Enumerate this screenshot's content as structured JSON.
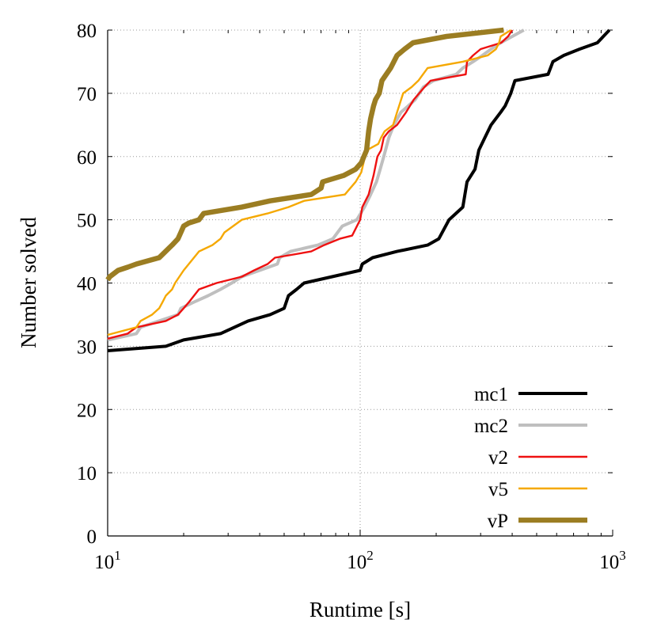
{
  "chart_data": {
    "type": "line",
    "title": "",
    "xlabel": "Runtime [s]",
    "ylabel": "Number solved",
    "x_scale": "log",
    "xlim": [
      10,
      1000
    ],
    "ylim": [
      0,
      80
    ],
    "x_ticks": [
      {
        "value": 10,
        "base": "10",
        "exp": "1"
      },
      {
        "value": 100,
        "base": "10",
        "exp": "2"
      },
      {
        "value": 1000,
        "base": "10",
        "exp": "3"
      }
    ],
    "y_ticks": [
      "0",
      "10",
      "20",
      "30",
      "40",
      "50",
      "60",
      "70",
      "80"
    ],
    "grid": true,
    "legend_position": "bottom-right",
    "series": [
      {
        "name": "mc1",
        "color": "#000000",
        "points": [
          [
            10,
            29.3
          ],
          [
            17,
            30
          ],
          [
            20,
            31
          ],
          [
            28,
            32
          ],
          [
            36,
            34
          ],
          [
            44,
            35
          ],
          [
            50,
            36
          ],
          [
            52,
            38
          ],
          [
            56,
            39
          ],
          [
            60,
            40
          ],
          [
            100,
            42
          ],
          [
            102,
            43
          ],
          [
            112,
            44
          ],
          [
            140,
            45
          ],
          [
            185,
            46
          ],
          [
            205,
            47
          ],
          [
            225,
            50
          ],
          [
            255,
            52
          ],
          [
            265,
            56
          ],
          [
            285,
            58
          ],
          [
            295,
            61
          ],
          [
            312,
            63
          ],
          [
            330,
            65
          ],
          [
            360,
            67
          ],
          [
            375,
            68
          ],
          [
            395,
            70
          ],
          [
            410,
            72
          ],
          [
            555,
            73
          ],
          [
            580,
            75
          ],
          [
            640,
            76
          ],
          [
            740,
            77
          ],
          [
            870,
            78
          ],
          [
            970,
            80
          ]
        ]
      },
      {
        "name": "mc2",
        "color": "#bfbfbf",
        "points": [
          [
            10,
            31
          ],
          [
            13,
            32
          ],
          [
            13.5,
            33
          ],
          [
            16,
            34
          ],
          [
            19,
            35
          ],
          [
            19.5,
            36
          ],
          [
            22,
            37
          ],
          [
            25,
            38
          ],
          [
            28,
            39
          ],
          [
            31,
            40
          ],
          [
            34,
            41
          ],
          [
            40,
            42
          ],
          [
            47,
            43
          ],
          [
            48,
            44
          ],
          [
            53,
            45
          ],
          [
            68,
            46
          ],
          [
            78,
            47
          ],
          [
            85,
            49
          ],
          [
            97,
            50
          ],
          [
            104,
            52
          ],
          [
            110,
            54
          ],
          [
            116,
            56
          ],
          [
            120,
            58
          ],
          [
            124,
            60
          ],
          [
            130,
            63
          ],
          [
            136,
            65
          ],
          [
            145,
            67
          ],
          [
            155,
            68
          ],
          [
            165,
            69
          ],
          [
            178,
            71
          ],
          [
            195,
            72
          ],
          [
            240,
            73
          ],
          [
            255,
            74
          ],
          [
            280,
            75
          ],
          [
            305,
            76
          ],
          [
            330,
            77
          ],
          [
            360,
            78
          ],
          [
            445,
            80
          ]
        ]
      },
      {
        "name": "v2",
        "color": "#ee1111",
        "points": [
          [
            10,
            31.2
          ],
          [
            12,
            32
          ],
          [
            13,
            33
          ],
          [
            17,
            34
          ],
          [
            19,
            35
          ],
          [
            20,
            36
          ],
          [
            21,
            37
          ],
          [
            23,
            39
          ],
          [
            27,
            40
          ],
          [
            34,
            41
          ],
          [
            38,
            42
          ],
          [
            43,
            43
          ],
          [
            46,
            44
          ],
          [
            64,
            45
          ],
          [
            72,
            46
          ],
          [
            83,
            47
          ],
          [
            93,
            47.5
          ],
          [
            100,
            50
          ],
          [
            102,
            52
          ],
          [
            108,
            54
          ],
          [
            113,
            57
          ],
          [
            117,
            60
          ],
          [
            121,
            61
          ],
          [
            124,
            63
          ],
          [
            130,
            64
          ],
          [
            140,
            65
          ],
          [
            152,
            67
          ],
          [
            163,
            69
          ],
          [
            180,
            71
          ],
          [
            190,
            72
          ],
          [
            262,
            73
          ],
          [
            265,
            75
          ],
          [
            280,
            76
          ],
          [
            300,
            77
          ],
          [
            362,
            78
          ],
          [
            385,
            79
          ],
          [
            400,
            80
          ]
        ]
      },
      {
        "name": "v5",
        "color": "#f5a800",
        "points": [
          [
            10,
            31.8
          ],
          [
            13,
            33
          ],
          [
            13.5,
            34
          ],
          [
            15,
            35
          ],
          [
            16,
            36
          ],
          [
            16.5,
            37
          ],
          [
            17,
            38
          ],
          [
            18,
            39
          ],
          [
            18.5,
            40
          ],
          [
            20,
            42
          ],
          [
            23,
            45
          ],
          [
            26,
            46
          ],
          [
            28,
            47
          ],
          [
            29,
            48
          ],
          [
            34,
            50
          ],
          [
            43,
            51
          ],
          [
            52,
            52
          ],
          [
            60,
            53
          ],
          [
            87,
            54
          ],
          [
            96,
            56
          ],
          [
            101,
            57.5
          ],
          [
            106,
            61
          ],
          [
            118,
            62
          ],
          [
            121,
            63
          ],
          [
            125,
            64
          ],
          [
            135,
            65
          ],
          [
            140,
            67
          ],
          [
            148,
            70
          ],
          [
            160,
            71
          ],
          [
            170,
            72
          ],
          [
            185,
            74
          ],
          [
            255,
            75
          ],
          [
            320,
            76
          ],
          [
            345,
            77
          ],
          [
            355,
            78
          ],
          [
            360,
            79
          ],
          [
            395,
            80
          ]
        ]
      },
      {
        "name": "vP",
        "color": "#9b7d22",
        "points": [
          [
            10,
            40.5
          ],
          [
            10.2,
            41
          ],
          [
            11,
            42
          ],
          [
            12,
            42.5
          ],
          [
            13,
            43
          ],
          [
            16,
            44
          ],
          [
            18,
            46
          ],
          [
            19,
            47
          ],
          [
            19.5,
            48
          ],
          [
            20,
            49
          ],
          [
            21,
            49.5
          ],
          [
            23,
            50
          ],
          [
            24,
            51
          ],
          [
            34,
            52
          ],
          [
            44,
            53
          ],
          [
            64,
            54
          ],
          [
            70,
            55
          ],
          [
            71,
            56
          ],
          [
            86,
            57
          ],
          [
            96,
            58
          ],
          [
            101,
            59
          ],
          [
            106,
            61
          ],
          [
            108,
            64
          ],
          [
            110,
            66
          ],
          [
            113,
            68
          ],
          [
            115,
            69
          ],
          [
            119,
            70
          ],
          [
            122,
            72
          ],
          [
            132,
            74
          ],
          [
            140,
            76
          ],
          [
            150,
            77
          ],
          [
            162,
            78
          ],
          [
            220,
            79
          ],
          [
            370,
            80
          ]
        ]
      }
    ]
  }
}
